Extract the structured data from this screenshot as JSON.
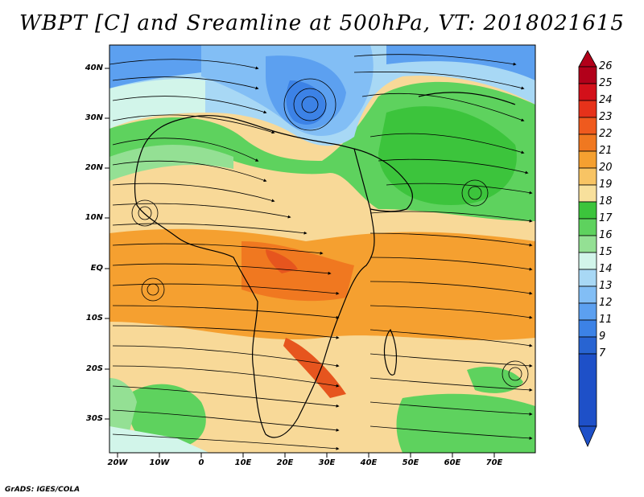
{
  "title": "WBPT [C] and Sreamline at 500hPa, VT: 2018021615",
  "credit": "GrADS: IGES/COLA",
  "lat_labels": [
    "40N",
    "30N",
    "20N",
    "10N",
    "EQ",
    "10S",
    "20S",
    "30S"
  ],
  "lon_labels": [
    "20W",
    "10W",
    "0",
    "10E",
    "20E",
    "30E",
    "40E",
    "50E",
    "60E",
    "70E"
  ],
  "colorbar": {
    "labels": [
      "26",
      "25",
      "24",
      "23",
      "22",
      "21",
      "20",
      "19",
      "18",
      "17",
      "16",
      "15",
      "14",
      "13",
      "12",
      "11",
      "9",
      "7"
    ],
    "colors": [
      "#b2001a",
      "#d3101a",
      "#e6321a",
      "#ef5a1e",
      "#f07820",
      "#f5a030",
      "#f8c464",
      "#f8e09c",
      "#3cc43c",
      "#5ed25e",
      "#94e094",
      "#d2f5ea",
      "#a8d8f5",
      "#82bef5",
      "#5ca0f0",
      "#3c82e6",
      "#2864d2",
      "#1e50c8"
    ]
  }
}
